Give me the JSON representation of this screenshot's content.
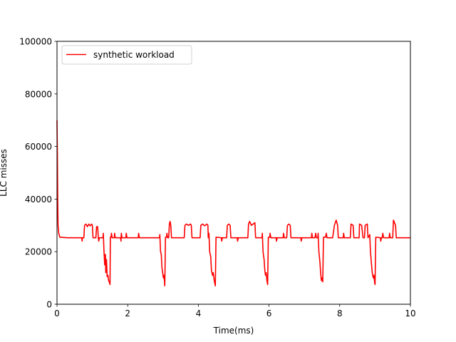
{
  "chart_data": {
    "type": "line",
    "title": "",
    "xlabel": "Time(ms)",
    "ylabel": "LLC misses",
    "xlim": [
      0,
      10
    ],
    "ylim": [
      0,
      100000
    ],
    "xticks": [
      0,
      2,
      4,
      6,
      8,
      10
    ],
    "yticks": [
      0,
      20000,
      40000,
      60000,
      80000,
      100000
    ],
    "grid": false,
    "legend_position": "top-left",
    "series": [
      {
        "name": "synthetic workload",
        "color": "#ff0000",
        "points": [
          [
            0.0,
            70000
          ],
          [
            0.01,
            58000
          ],
          [
            0.02,
            40000
          ],
          [
            0.03,
            30000
          ],
          [
            0.05,
            27000
          ],
          [
            0.08,
            25500
          ],
          [
            0.3,
            25300
          ],
          [
            0.7,
            25300
          ],
          [
            0.71,
            24000
          ],
          [
            0.72,
            25300
          ],
          [
            0.76,
            25300
          ],
          [
            0.78,
            30000
          ],
          [
            0.82,
            30500
          ],
          [
            0.86,
            29500
          ],
          [
            0.9,
            30500
          ],
          [
            0.94,
            29800
          ],
          [
            0.98,
            30500
          ],
          [
            1.0,
            30000
          ],
          [
            1.02,
            25300
          ],
          [
            1.1,
            25300
          ],
          [
            1.12,
            29500
          ],
          [
            1.15,
            29500
          ],
          [
            1.17,
            25300
          ],
          [
            1.18,
            24000
          ],
          [
            1.2,
            25300
          ],
          [
            1.3,
            25300
          ],
          [
            1.31,
            27000
          ],
          [
            1.33,
            20000
          ],
          [
            1.35,
            15000
          ],
          [
            1.37,
            19000
          ],
          [
            1.38,
            12000
          ],
          [
            1.4,
            17000
          ],
          [
            1.42,
            10500
          ],
          [
            1.44,
            11000
          ],
          [
            1.46,
            9000
          ],
          [
            1.48,
            8500
          ],
          [
            1.5,
            7500
          ],
          [
            1.51,
            25500
          ],
          [
            1.53,
            25500
          ],
          [
            1.54,
            27000
          ],
          [
            1.56,
            25300
          ],
          [
            1.62,
            25300
          ],
          [
            1.63,
            27000
          ],
          [
            1.65,
            25300
          ],
          [
            1.8,
            25300
          ],
          [
            1.81,
            24000
          ],
          [
            1.82,
            27000
          ],
          [
            1.84,
            25300
          ],
          [
            1.95,
            25300
          ],
          [
            1.96,
            27000
          ],
          [
            1.98,
            25300
          ],
          [
            2.3,
            25300
          ],
          [
            2.31,
            27000
          ],
          [
            2.33,
            25300
          ],
          [
            2.9,
            25300
          ],
          [
            2.91,
            26500
          ],
          [
            2.93,
            20000
          ],
          [
            2.95,
            19000
          ],
          [
            2.97,
            14000
          ],
          [
            2.99,
            12000
          ],
          [
            3.01,
            10000
          ],
          [
            3.03,
            11000
          ],
          [
            3.05,
            7000
          ],
          [
            3.07,
            25500
          ],
          [
            3.1,
            25500
          ],
          [
            3.11,
            27000
          ],
          [
            3.13,
            25300
          ],
          [
            3.16,
            25300
          ],
          [
            3.18,
            30500
          ],
          [
            3.2,
            31500
          ],
          [
            3.22,
            30000
          ],
          [
            3.24,
            25300
          ],
          [
            3.6,
            25300
          ],
          [
            3.62,
            30000
          ],
          [
            3.66,
            30500
          ],
          [
            3.72,
            30000
          ],
          [
            3.78,
            30500
          ],
          [
            3.8,
            30000
          ],
          [
            3.82,
            25300
          ],
          [
            4.05,
            25300
          ],
          [
            4.07,
            30000
          ],
          [
            4.12,
            30500
          ],
          [
            4.18,
            29800
          ],
          [
            4.24,
            30500
          ],
          [
            4.27,
            30000
          ],
          [
            4.28,
            25300
          ],
          [
            4.3,
            27000
          ],
          [
            4.32,
            20000
          ],
          [
            4.35,
            18000
          ],
          [
            4.37,
            13000
          ],
          [
            4.4,
            11000
          ],
          [
            4.42,
            12000
          ],
          [
            4.45,
            9000
          ],
          [
            4.48,
            7000
          ],
          [
            4.5,
            25500
          ],
          [
            4.65,
            25300
          ],
          [
            4.66,
            24000
          ],
          [
            4.68,
            25300
          ],
          [
            4.8,
            25300
          ],
          [
            4.82,
            30000
          ],
          [
            4.86,
            30500
          ],
          [
            4.9,
            30000
          ],
          [
            4.92,
            25300
          ],
          [
            5.1,
            25300
          ],
          [
            5.11,
            24000
          ],
          [
            5.13,
            25300
          ],
          [
            5.4,
            25300
          ],
          [
            5.42,
            30500
          ],
          [
            5.45,
            31500
          ],
          [
            5.5,
            30000
          ],
          [
            5.55,
            30500
          ],
          [
            5.6,
            31000
          ],
          [
            5.62,
            25300
          ],
          [
            5.8,
            25300
          ],
          [
            5.81,
            27000
          ],
          [
            5.83,
            20000
          ],
          [
            5.86,
            17000
          ],
          [
            5.88,
            13000
          ],
          [
            5.9,
            11000
          ],
          [
            5.92,
            12000
          ],
          [
            5.94,
            9000
          ],
          [
            5.96,
            7500
          ],
          [
            5.98,
            25500
          ],
          [
            6.02,
            25500
          ],
          [
            6.03,
            27000
          ],
          [
            6.05,
            25300
          ],
          [
            6.2,
            25300
          ],
          [
            6.21,
            24000
          ],
          [
            6.23,
            25300
          ],
          [
            6.4,
            25300
          ],
          [
            6.41,
            27000
          ],
          [
            6.43,
            25300
          ],
          [
            6.5,
            25300
          ],
          [
            6.52,
            30000
          ],
          [
            6.56,
            30500
          ],
          [
            6.6,
            30000
          ],
          [
            6.62,
            25300
          ],
          [
            6.9,
            25300
          ],
          [
            6.91,
            24000
          ],
          [
            6.93,
            25300
          ],
          [
            7.2,
            25300
          ],
          [
            7.21,
            27000
          ],
          [
            7.23,
            25300
          ],
          [
            7.3,
            25300
          ],
          [
            7.32,
            27000
          ],
          [
            7.34,
            25300
          ],
          [
            7.38,
            25300
          ],
          [
            7.39,
            27000
          ],
          [
            7.41,
            20000
          ],
          [
            7.44,
            16000
          ],
          [
            7.46,
            12000
          ],
          [
            7.48,
            9000
          ],
          [
            7.5,
            10000
          ],
          [
            7.52,
            8500
          ],
          [
            7.54,
            25500
          ],
          [
            7.6,
            25500
          ],
          [
            7.62,
            27000
          ],
          [
            7.64,
            25300
          ],
          [
            7.8,
            25300
          ],
          [
            7.85,
            30000
          ],
          [
            7.9,
            32000
          ],
          [
            7.94,
            30000
          ],
          [
            7.96,
            25300
          ],
          [
            8.1,
            25300
          ],
          [
            8.11,
            27000
          ],
          [
            8.13,
            25300
          ],
          [
            8.3,
            25300
          ],
          [
            8.32,
            30500
          ],
          [
            8.38,
            30000
          ],
          [
            8.4,
            25300
          ],
          [
            8.55,
            25300
          ],
          [
            8.56,
            30500
          ],
          [
            8.62,
            30000
          ],
          [
            8.66,
            25300
          ],
          [
            8.7,
            25300
          ],
          [
            8.72,
            30000
          ],
          [
            8.78,
            30500
          ],
          [
            8.8,
            25300
          ],
          [
            8.85,
            26500
          ],
          [
            8.87,
            20000
          ],
          [
            8.9,
            15000
          ],
          [
            8.92,
            12000
          ],
          [
            8.95,
            10000
          ],
          [
            8.97,
            11000
          ],
          [
            8.99,
            8000
          ],
          [
            9.0,
            7500
          ],
          [
            9.02,
            25500
          ],
          [
            9.15,
            25300
          ],
          [
            9.16,
            24000
          ],
          [
            9.18,
            25300
          ],
          [
            9.2,
            25300
          ],
          [
            9.22,
            27000
          ],
          [
            9.24,
            25300
          ],
          [
            9.4,
            25300
          ],
          [
            9.41,
            27000
          ],
          [
            9.43,
            25300
          ],
          [
            9.5,
            25300
          ],
          [
            9.52,
            32000
          ],
          [
            9.55,
            31000
          ],
          [
            9.58,
            30000
          ],
          [
            9.6,
            25300
          ],
          [
            10.0,
            25300
          ]
        ]
      }
    ]
  }
}
